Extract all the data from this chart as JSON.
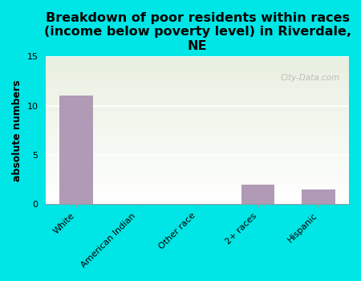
{
  "categories": [
    "White",
    "American Indian",
    "Other race",
    "2+ races",
    "Hispanic"
  ],
  "values": [
    11,
    0,
    0,
    2,
    1.5
  ],
  "bar_color": "#b09ab5",
  "background_color": "#00e5e5",
  "plot_bg_top": "#e8f0e0",
  "plot_bg_bottom": "#ffffff",
  "title": "Breakdown of poor residents within races\n(income below poverty level) in Riverdale,\nNE",
  "ylabel": "absolute numbers",
  "ylim": [
    0,
    15
  ],
  "yticks": [
    0,
    5,
    10,
    15
  ],
  "title_fontsize": 11.5,
  "ylabel_fontsize": 9,
  "tick_fontsize": 8,
  "watermark": "City-Data.com",
  "grid_color": "#ffffff"
}
